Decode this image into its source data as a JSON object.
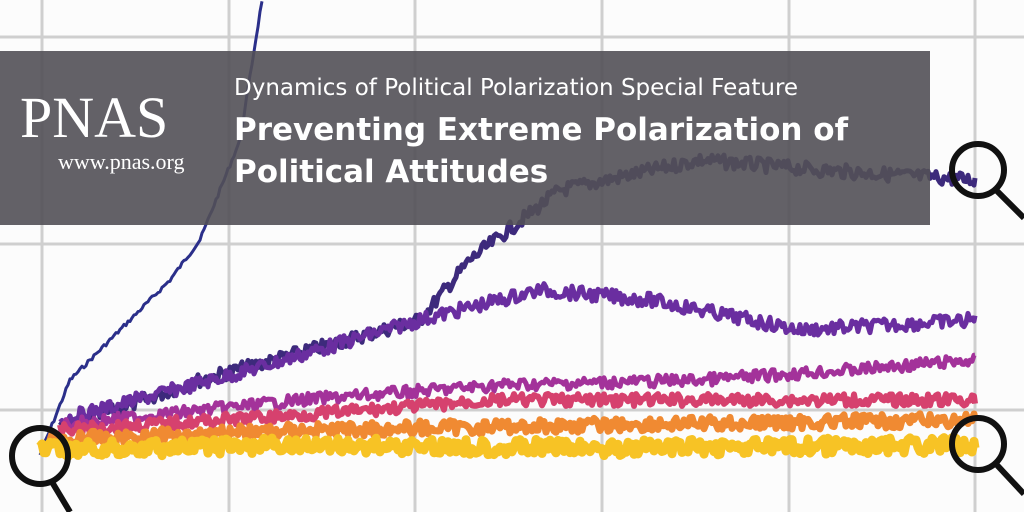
{
  "brand": {
    "logo_text": "PNAS",
    "url_text": "www.pnas.org"
  },
  "heading": {
    "feature_label": "Dynamics of Political Polarization Special Feature",
    "title": "Preventing Extreme Polarization of Political Attitudes"
  },
  "colors": {
    "banner": "#525056",
    "series": [
      "#2b2f8a",
      "#3d2a7c",
      "#6a2ea0",
      "#a3329a",
      "#d6416e",
      "#f08a32",
      "#f7c325"
    ]
  }
}
